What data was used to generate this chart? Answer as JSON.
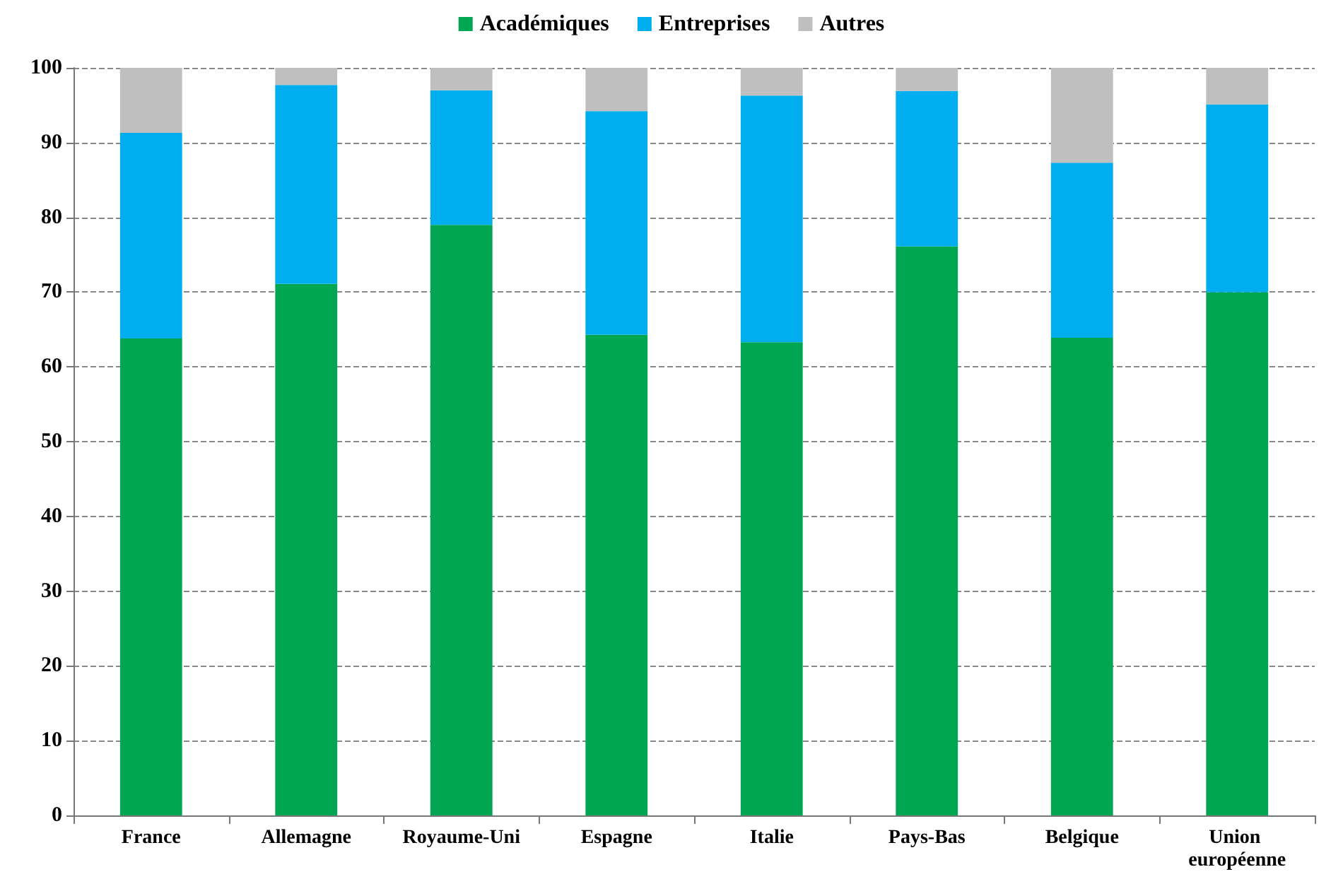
{
  "chart_data": {
    "type": "bar",
    "stacked": true,
    "categories": [
      "France",
      "Allemagne",
      "Royaume-Uni",
      "Espagne",
      "Italie",
      "Pays-Bas",
      "Belgique",
      "Union européenne"
    ],
    "series": [
      {
        "name": "Académiques",
        "color": "#00a651",
        "values": [
          63.8,
          71.1,
          79.0,
          64.3,
          63.3,
          76.1,
          63.9,
          70.0
        ]
      },
      {
        "name": "Entreprises",
        "color": "#00aeef",
        "values": [
          27.5,
          26.6,
          18.0,
          29.9,
          33.0,
          20.8,
          23.4,
          25.1
        ]
      },
      {
        "name": "Autres",
        "color": "#bfbfbf",
        "values": [
          8.7,
          2.3,
          3.0,
          5.8,
          3.7,
          3.1,
          12.7,
          4.9
        ]
      }
    ],
    "ylim": [
      0,
      100
    ],
    "yticks": [
      0,
      10,
      20,
      30,
      40,
      50,
      60,
      70,
      80,
      90,
      100
    ],
    "grid": "y",
    "legend": "top"
  }
}
